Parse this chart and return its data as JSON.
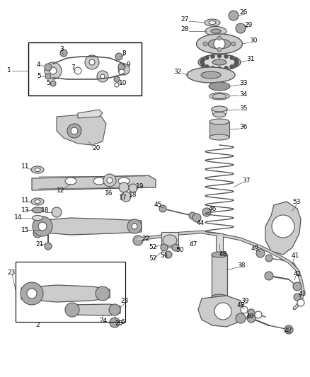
{
  "bg_color": "#ffffff",
  "fig_width": 4.38,
  "fig_height": 5.33,
  "dpi": 100,
  "gray": "#555555",
  "dgray": "#333333",
  "lgray": "#aaaaaa",
  "parts_color": "#888888",
  "fill_light": "#cccccc",
  "fill_mid": "#aaaaaa",
  "fill_dark": "#666666",
  "label_fontsize": 6.5,
  "leader_lw": 0.5,
  "part_lw": 0.8
}
